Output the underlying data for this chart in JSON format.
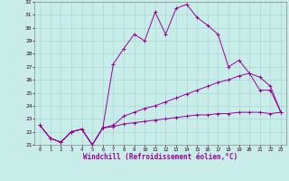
{
  "xlabel": "Windchill (Refroidissement éolien,°C)",
  "background_color": "#c8ede8",
  "grid_color": "#a8d8d4",
  "line_color": "#990099",
  "x_hours": [
    0,
    1,
    2,
    3,
    4,
    5,
    6,
    7,
    8,
    9,
    10,
    11,
    12,
    13,
    14,
    15,
    16,
    17,
    18,
    19,
    20,
    21,
    22,
    23
  ],
  "series1": [
    22.5,
    21.5,
    21.2,
    22.0,
    22.2,
    21.0,
    22.3,
    27.2,
    28.4,
    29.5,
    29.0,
    31.2,
    29.5,
    31.5,
    31.8,
    30.8,
    30.2,
    29.5,
    27.0,
    27.5,
    26.5,
    25.2,
    25.2,
    23.5
  ],
  "series2": [
    22.5,
    21.5,
    21.2,
    22.0,
    22.2,
    21.0,
    22.3,
    22.5,
    23.2,
    23.5,
    23.8,
    24.0,
    24.3,
    24.6,
    24.9,
    25.2,
    25.5,
    25.8,
    26.0,
    26.3,
    26.5,
    26.2,
    25.5,
    23.5
  ],
  "series3": [
    22.5,
    21.5,
    21.2,
    22.0,
    22.2,
    21.0,
    22.3,
    22.4,
    22.6,
    22.7,
    22.8,
    22.9,
    23.0,
    23.1,
    23.2,
    23.3,
    23.3,
    23.4,
    23.4,
    23.5,
    23.5,
    23.5,
    23.4,
    23.5
  ],
  "ylim": [
    21,
    32
  ],
  "yticks": [
    21,
    22,
    23,
    24,
    25,
    26,
    27,
    28,
    29,
    30,
    31,
    32
  ]
}
